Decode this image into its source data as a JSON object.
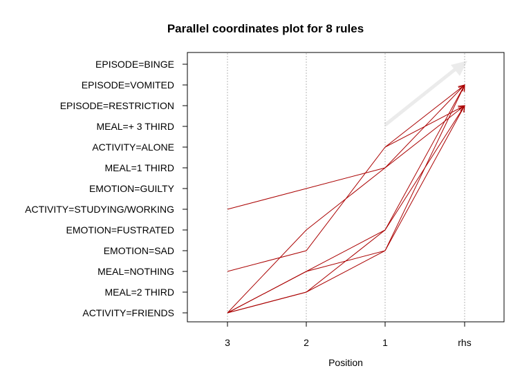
{
  "chart_data": {
    "type": "parallel-coordinates",
    "title": "Parallel coordinates plot for 8 rules",
    "xlabel": "Position",
    "ylabel": "",
    "x_categories": [
      "3",
      "2",
      "1",
      "rhs"
    ],
    "y_categories": [
      "ACTIVITY=FRIENDS",
      "MEAL=2 THIRD",
      "MEAL=NOTHING",
      "EMOTION=SAD",
      "EMOTION=FUSTRATED",
      "ACTIVITY=STUDYING/WORKING",
      "EMOTION=GUILTY",
      "MEAL=1 THIRD",
      "ACTIVITY=ALONE",
      "MEAL=+  3 THIRD",
      "EPISODE=RESTRICTION",
      "EPISODE=VOMITED",
      "EPISODE=BINGE"
    ],
    "grid": true,
    "line_color": "#aa0000",
    "arrow_color": "#ebebeb",
    "rules": [
      {
        "path": [
          null,
          null,
          "ACTIVITY=ALONE",
          "EPISODE=VOMITED"
        ]
      },
      {
        "path": [
          "ACTIVITY=STUDYING/WORKING",
          null,
          "MEAL=1 THIRD",
          "EPISODE=RESTRICTION"
        ]
      },
      {
        "path": [
          "ACTIVITY=FRIENDS",
          "EMOTION=FUSTRATED",
          "MEAL=1 THIRD",
          "EPISODE=VOMITED"
        ]
      },
      {
        "path": [
          "MEAL=NOTHING",
          "EMOTION=SAD",
          "ACTIVITY=ALONE",
          "EPISODE=RESTRICTION"
        ]
      },
      {
        "path": [
          "ACTIVITY=FRIENDS",
          "MEAL=NOTHING",
          "EMOTION=FUSTRATED",
          "EPISODE=VOMITED"
        ]
      },
      {
        "path": [
          "ACTIVITY=FRIENDS",
          "MEAL=2 THIRD",
          "EMOTION=FUSTRATED",
          "EPISODE=RESTRICTION"
        ]
      },
      {
        "path": [
          "ACTIVITY=FRIENDS",
          "MEAL=NOTHING",
          "EMOTION=SAD",
          "EPISODE=VOMITED"
        ]
      },
      {
        "path": [
          "ACTIVITY=FRIENDS",
          "MEAL=2 THIRD",
          "EMOTION=SAD",
          "EPISODE=RESTRICTION"
        ]
      }
    ]
  }
}
